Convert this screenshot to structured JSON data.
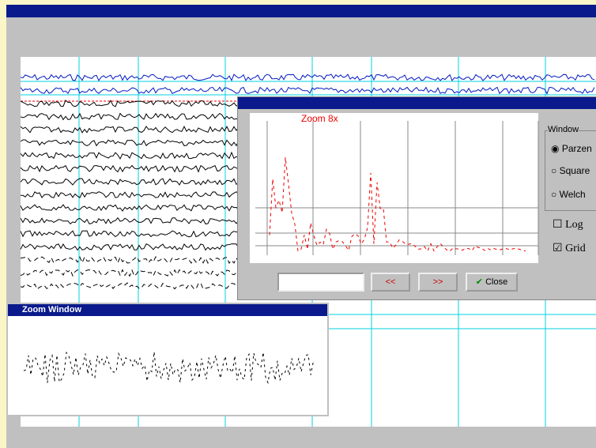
{
  "fft_window": {
    "plot_title": "Zoom 8x",
    "window_group": "Window",
    "window_options": [
      "Parzen",
      "Square",
      "Welch"
    ],
    "log_label": "Log",
    "grid_label": "Grid",
    "prev_button": "<<",
    "next_button": ">>",
    "close_button": "Close"
  },
  "zoom_window": {
    "title": "Zoom Window"
  }
}
